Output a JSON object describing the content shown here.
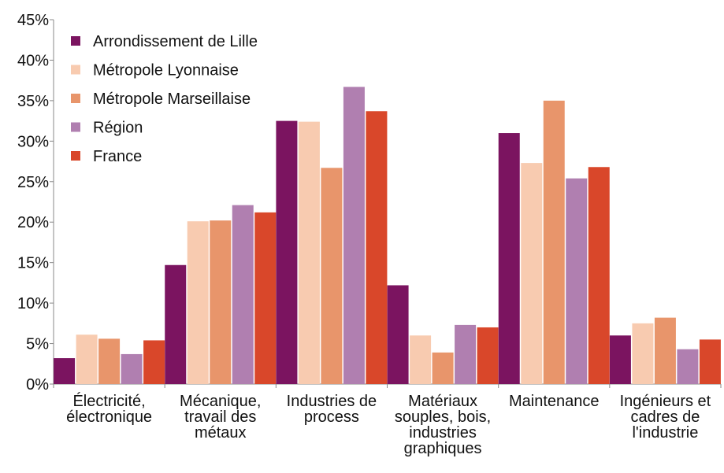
{
  "chart_data": {
    "type": "bar",
    "categories": [
      "Électricité,\nélectronique",
      "Mécanique,\ntravail des\nmétaux",
      "Industries de\nprocess",
      "Matériaux\nsouples, bois,\nindustries\ngraphiques",
      "Maintenance",
      "Ingénieurs et\ncadres de\nl'industrie"
    ],
    "series": [
      {
        "name": "Arrondissement de Lille",
        "color": "#7b1460",
        "values": [
          3.2,
          14.7,
          32.5,
          12.2,
          31.0,
          6.0
        ]
      },
      {
        "name": "Métropole Lyonnaise",
        "color": "#f8cbb0",
        "values": [
          6.1,
          20.1,
          32.4,
          6.0,
          27.3,
          7.5
        ]
      },
      {
        "name": "Métropole Marseillaise",
        "color": "#e8956b",
        "values": [
          5.6,
          20.2,
          26.7,
          3.9,
          35.0,
          8.2
        ]
      },
      {
        "name": "Région",
        "color": "#b07fb0",
        "values": [
          3.7,
          22.1,
          36.7,
          7.3,
          25.4,
          4.3
        ]
      },
      {
        "name": "France",
        "color": "#d9472a",
        "values": [
          5.4,
          21.2,
          33.7,
          7.0,
          26.8,
          5.5
        ]
      }
    ],
    "ylim": [
      0,
      45
    ],
    "yticks": [
      {
        "value": 0,
        "label": "0%"
      },
      {
        "value": 5,
        "label": "5%"
      },
      {
        "value": 10,
        "label": "10%"
      },
      {
        "value": 15,
        "label": "15%"
      },
      {
        "value": 20,
        "label": "20%"
      },
      {
        "value": 25,
        "label": "25%"
      },
      {
        "value": 30,
        "label": "30%"
      },
      {
        "value": 35,
        "label": "35%"
      },
      {
        "value": 40,
        "label": "40%"
      },
      {
        "value": 45,
        "label": "45%"
      }
    ],
    "grid": false,
    "legend": "upper left"
  }
}
